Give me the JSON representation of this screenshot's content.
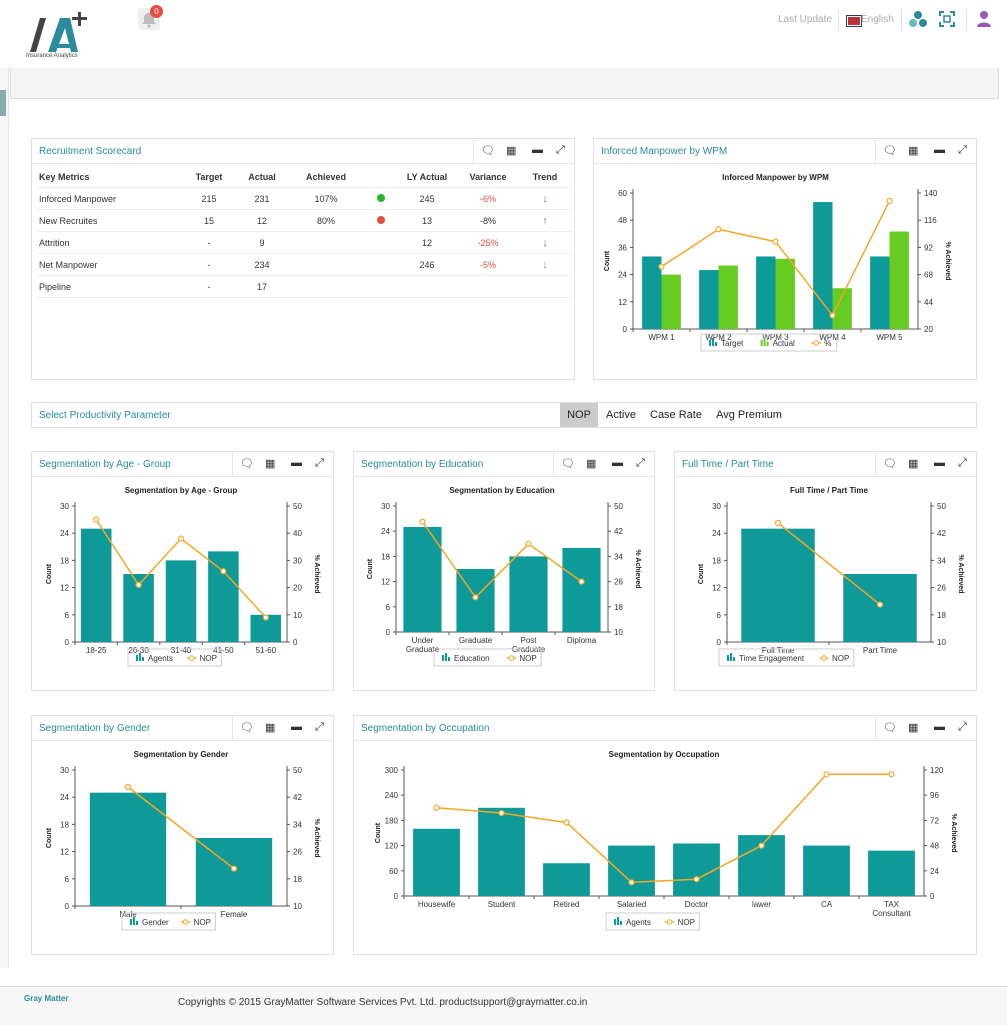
{
  "header": {
    "logo_text": "IA+",
    "logo_subtitle": "Insurance Analytics",
    "notification_count": "0",
    "last_update_label": "Last Update",
    "language_label": "English"
  },
  "scorecard": {
    "title": "Recruitment Scorecard",
    "columns": [
      "Key Metrics",
      "Target",
      "Actual",
      "Achieved",
      "",
      "LY Actual",
      "Variance",
      "Trend"
    ],
    "rows": [
      {
        "metric": "Inforced Manpower",
        "target": "215",
        "actual": "231",
        "achieved": "107%",
        "status": "green",
        "ly": "245",
        "variance": "-6%",
        "variance_color": "red",
        "trend": "↓",
        "trend_color": "red"
      },
      {
        "metric": "New Recruites",
        "target": "15",
        "actual": "12",
        "achieved": "80%",
        "status": "red",
        "ly": "13",
        "variance": "-8%",
        "variance_color": "normal",
        "trend": "↑",
        "trend_color": "green"
      },
      {
        "metric": "Attrition",
        "target": "-",
        "actual": "9",
        "achieved": "",
        "status": "",
        "ly": "12",
        "variance": "-25%",
        "variance_color": "red",
        "trend": "↓",
        "trend_color": "green"
      },
      {
        "metric": "Net Manpower",
        "target": "-",
        "actual": "234",
        "achieved": "",
        "status": "",
        "ly": "246",
        "variance": "-5%",
        "variance_color": "red",
        "trend": "↓",
        "trend_color": "green"
      },
      {
        "metric": "Pipeline",
        "target": "-",
        "actual": "17",
        "achieved": "",
        "status": "",
        "ly": "",
        "variance": "",
        "variance_color": "normal",
        "trend": "",
        "trend_color": "normal"
      }
    ]
  },
  "params": {
    "title": "Select Productivity Parameter",
    "options": [
      "NOP",
      "Active",
      "Case Rate",
      "Avg Premium"
    ],
    "selected": "NOP"
  },
  "colors": {
    "teal": "#0e9a98",
    "green": "#66cc22",
    "orange": "#f5a623",
    "title": "#2a8b9a"
  },
  "footer": {
    "brand": "Gray Matter",
    "copyright": "Copyrights © 2015 GrayMatter Software Services Pvt. Ltd. productsupport@graymatter.co.in"
  },
  "chart_data": [
    {
      "id": "wpm",
      "panel_title": "Inforced Manpower by WPM",
      "type": "bar",
      "title": "Inforced Manpower by WPM",
      "categories": [
        "WPM 1",
        "WPM 2",
        "WPM 3",
        "WPM 4",
        "WPM 5"
      ],
      "series": [
        {
          "name": "Target",
          "color": "#0e9a98",
          "values": [
            32,
            26,
            32,
            56,
            32
          ]
        },
        {
          "name": "Actual",
          "color": "#66cc22",
          "values": [
            24,
            28,
            31,
            18,
            43
          ]
        }
      ],
      "line": {
        "name": "%",
        "values": [
          75,
          108,
          97,
          32,
          133
        ]
      },
      "ylabel": "Count",
      "y2label": "% Achieved",
      "ylim": [
        0,
        60
      ],
      "yticks": [
        0,
        12,
        24,
        36,
        48,
        60
      ],
      "y2lim": [
        20,
        140
      ],
      "y2ticks": [
        20,
        44,
        68,
        92,
        116,
        140
      ]
    },
    {
      "id": "age",
      "panel_title": "Segmentation by Age - Group",
      "type": "bar",
      "title": "Segmentation by Age - Group",
      "categories": [
        "18-25",
        "26-30",
        "31-40",
        "41-50",
        "51-60"
      ],
      "series": [
        {
          "name": "Agents",
          "color": "#0e9a98",
          "values": [
            25,
            15,
            18,
            20,
            6
          ]
        }
      ],
      "line": {
        "name": "NOP",
        "values": [
          45,
          21,
          38,
          26,
          9
        ]
      },
      "ylabel": "Count",
      "y2label": "% Achieved",
      "ylim": [
        0,
        30
      ],
      "yticks": [
        0,
        6,
        12,
        18,
        24,
        30
      ],
      "y2lim": [
        0,
        50
      ],
      "y2ticks": [
        0,
        10,
        20,
        30,
        40,
        50
      ]
    },
    {
      "id": "edu",
      "panel_title": "Segmentation by Education",
      "type": "bar",
      "title": "Segmentation by Education",
      "categories": [
        [
          "Under",
          "Graduate"
        ],
        [
          "Graduate"
        ],
        [
          "Post",
          "Graduate"
        ],
        [
          "Diploma"
        ]
      ],
      "series": [
        {
          "name": "Education",
          "color": "#0e9a98",
          "values": [
            25,
            15,
            18,
            20
          ]
        }
      ],
      "line": {
        "name": "NOP",
        "values": [
          45,
          21,
          38,
          26
        ]
      },
      "ylabel": "Count",
      "y2label": "% Achieved",
      "ylim": [
        0,
        30
      ],
      "yticks": [
        0,
        6,
        12,
        18,
        24,
        30
      ],
      "y2lim": [
        10,
        50
      ],
      "y2ticks": [
        10,
        18,
        26,
        34,
        42,
        50
      ]
    },
    {
      "id": "ft",
      "panel_title": "Full Time / Part Time",
      "type": "bar",
      "title": "Full Time / Part Time",
      "categories": [
        "Full Time",
        "Part Time"
      ],
      "series": [
        {
          "name": "Time Engagement",
          "color": "#0e9a98",
          "values": [
            25,
            15
          ]
        }
      ],
      "line": {
        "name": "NOP",
        "values": [
          45,
          21
        ]
      },
      "ylabel": "Count",
      "y2label": "% Achieved",
      "ylim": [
        0,
        30
      ],
      "yticks": [
        0,
        6,
        12,
        18,
        24,
        30
      ],
      "y2lim": [
        10,
        50
      ],
      "y2ticks": [
        10,
        18,
        26,
        34,
        42,
        50
      ]
    },
    {
      "id": "gender",
      "panel_title": "Segmentation by Gender",
      "type": "bar",
      "title": "Segmentation by Gender",
      "categories": [
        "Male",
        "Female"
      ],
      "series": [
        {
          "name": "Gender",
          "color": "#0e9a98",
          "values": [
            25,
            15
          ]
        }
      ],
      "line": {
        "name": "NOP",
        "values": [
          45,
          21
        ]
      },
      "ylabel": "Count",
      "y2label": "% Achieved",
      "ylim": [
        0,
        30
      ],
      "yticks": [
        0,
        6,
        12,
        18,
        24,
        30
      ],
      "y2lim": [
        10,
        50
      ],
      "y2ticks": [
        10,
        18,
        26,
        34,
        42,
        50
      ]
    },
    {
      "id": "occ",
      "panel_title": "Segmentation by Occupation",
      "type": "bar",
      "title": "Segmentation by Occupation",
      "categories": [
        "Housewife",
        "Student",
        "Retired",
        "Salaried",
        "Doctor",
        "lawer",
        "CA",
        [
          "TAX",
          "Consultant"
        ]
      ],
      "series": [
        {
          "name": "Agents",
          "color": "#0e9a98",
          "values": [
            160,
            210,
            78,
            120,
            125,
            145,
            120,
            108
          ]
        }
      ],
      "line": {
        "name": "NOP",
        "values": [
          84,
          79,
          70,
          13,
          16,
          48,
          116,
          116
        ]
      },
      "ylabel": "Count",
      "y2label": "% Achieved",
      "ylim": [
        0,
        300
      ],
      "yticks": [
        0,
        60,
        120,
        180,
        240,
        300
      ],
      "y2lim": [
        0,
        120
      ],
      "y2ticks": [
        0,
        24,
        48,
        72,
        96,
        120
      ]
    }
  ]
}
